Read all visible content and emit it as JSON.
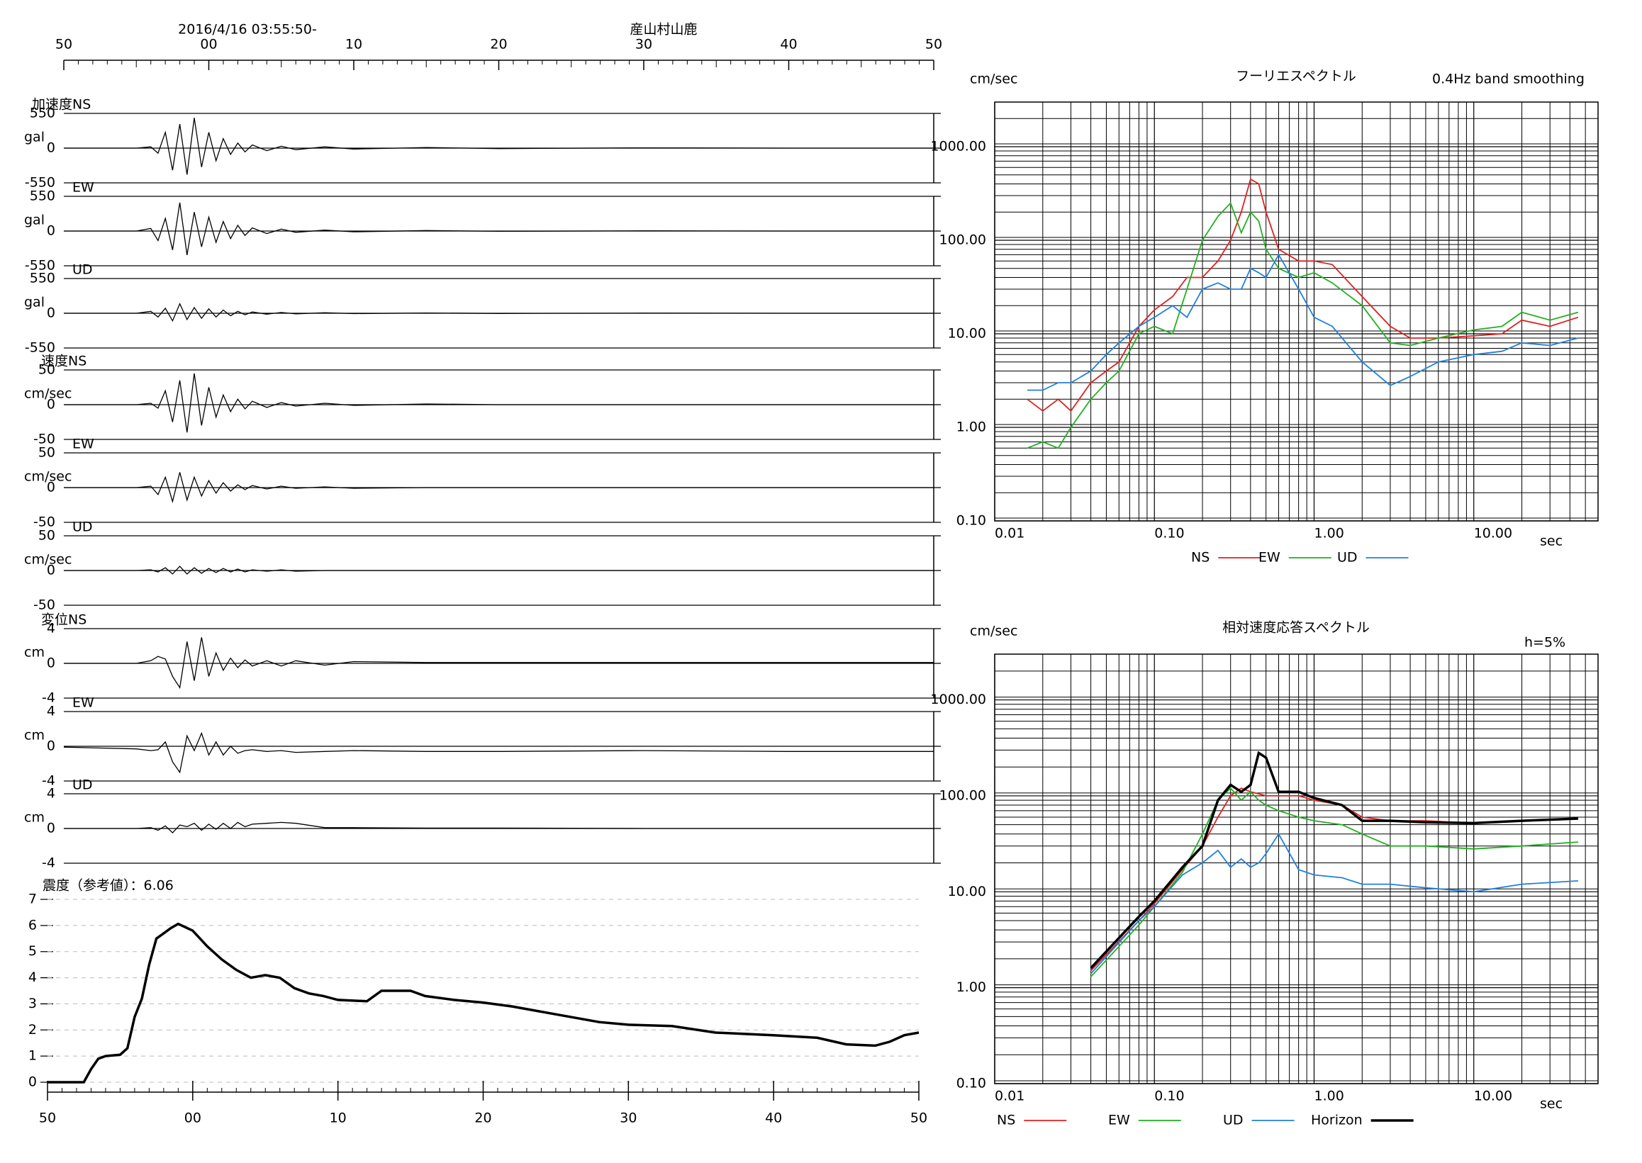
{
  "chart_data": [
    {
      "type": "waveform",
      "title": "産山村山鹿",
      "subtitle": "2016/4/16 03:55:50-",
      "xlim": [
        -10,
        50
      ],
      "xticks": [
        {
          "value": -10,
          "label": "50"
        },
        {
          "value": 0,
          "label": "00"
        },
        10,
        20,
        30,
        40,
        {
          "value": 50,
          "label": "50"
        }
      ],
      "x": [
        -10,
        -5,
        -4,
        -3.5,
        -3,
        -2.5,
        -2,
        -1.5,
        -1,
        -0.5,
        0,
        0.5,
        1,
        1.5,
        2,
        2.5,
        3,
        4,
        5,
        6,
        8,
        10,
        15,
        20,
        30,
        40,
        50
      ],
      "color": "#000000",
      "panels": [
        {
          "name": "加速度NS",
          "unit": "gal",
          "ylim": [
            -550,
            550
          ],
          "yticks": [
            -550,
            0,
            550
          ],
          "values": [
            0,
            0,
            20,
            -80,
            250,
            -350,
            380,
            -420,
            480,
            -300,
            250,
            -200,
            150,
            -100,
            80,
            -60,
            50,
            -40,
            30,
            -25,
            20,
            -15,
            10,
            -8,
            5,
            0,
            0
          ]
        },
        {
          "name": "EW",
          "unit": "gal",
          "ylim": [
            -550,
            550
          ],
          "yticks": [
            -550,
            0,
            550
          ],
          "values": [
            0,
            0,
            40,
            -150,
            200,
            -300,
            450,
            -380,
            300,
            -250,
            220,
            -180,
            150,
            -120,
            90,
            -70,
            50,
            -40,
            30,
            -20,
            15,
            -12,
            8,
            -5,
            3,
            0,
            0
          ]
        },
        {
          "name": "UD",
          "unit": "gal",
          "ylim": [
            -550,
            550
          ],
          "yticks": [
            -550,
            0,
            550
          ],
          "values": [
            0,
            0,
            30,
            -60,
            80,
            -120,
            150,
            -100,
            90,
            -80,
            70,
            -60,
            50,
            -40,
            30,
            -25,
            20,
            -15,
            12,
            -10,
            8,
            -6,
            4,
            -3,
            2,
            0,
            0
          ]
        },
        {
          "name": "速度NS",
          "unit": "cm/sec",
          "ylim": [
            -50,
            50
          ],
          "yticks": [
            -50,
            0,
            50
          ],
          "values": [
            0,
            0,
            2,
            -5,
            20,
            -25,
            35,
            -40,
            45,
            -30,
            25,
            -18,
            14,
            -10,
            8,
            -6,
            5,
            -4,
            3,
            -2,
            2,
            -1,
            1,
            0,
            0,
            0,
            0
          ]
        },
        {
          "name": "EW",
          "unit": "cm/sec",
          "ylim": [
            -50,
            50
          ],
          "yticks": [
            -50,
            0,
            50
          ],
          "values": [
            0,
            0,
            2,
            -10,
            15,
            -20,
            22,
            -18,
            15,
            -12,
            10,
            -8,
            7,
            -5,
            4,
            -3,
            3,
            -2,
            2,
            -1,
            1,
            -1,
            0,
            0,
            0,
            0,
            0
          ]
        },
        {
          "name": "UD",
          "unit": "cm/sec",
          "ylim": [
            -50,
            50
          ],
          "yticks": [
            -50,
            0,
            50
          ],
          "values": [
            0,
            0,
            1,
            -2,
            4,
            -5,
            6,
            -5,
            4,
            -4,
            3,
            -3,
            3,
            -2,
            2,
            -2,
            1,
            -1,
            1,
            -1,
            0,
            0,
            0,
            0,
            0,
            0,
            0
          ]
        },
        {
          "name": "変位NS",
          "unit": "cm",
          "ylim": [
            -4,
            4
          ],
          "yticks": [
            -4,
            0,
            4
          ],
          "values": [
            0,
            0,
            0.3,
            0.8,
            0.5,
            -1.5,
            -2.8,
            2.5,
            -2,
            3,
            -1.5,
            1.2,
            -0.8,
            0.6,
            -0.5,
            0.4,
            -0.3,
            0.3,
            -0.3,
            0.3,
            -0.2,
            0.2,
            0.1,
            0.1,
            0.1,
            0.1,
            0.1
          ]
        },
        {
          "name": "EW",
          "unit": "cm",
          "ylim": [
            -4,
            4
          ],
          "yticks": [
            -4,
            0,
            4
          ],
          "values": [
            -0.1,
            -0.3,
            -0.5,
            -0.4,
            0.5,
            -1.8,
            -3,
            1.2,
            -0.5,
            1.5,
            -1,
            0.5,
            -1,
            0,
            -0.8,
            -0.5,
            -0.4,
            -0.6,
            -0.5,
            -0.7,
            -0.6,
            -0.5,
            -0.6,
            -0.6,
            -0.5,
            -0.6,
            -0.6
          ]
        },
        {
          "name": "UD",
          "unit": "cm",
          "ylim": [
            -4,
            4
          ],
          "yticks": [
            -4,
            0,
            4
          ],
          "values": [
            0,
            0,
            0.1,
            -0.2,
            0.3,
            -0.5,
            0.4,
            0.2,
            0.6,
            -0.2,
            0.5,
            -0.1,
            0.6,
            0,
            0.7,
            0.2,
            0.5,
            0.6,
            0.7,
            0.6,
            0.1,
            0.1,
            0.05,
            0.05,
            0,
            0,
            0
          ]
        }
      ]
    },
    {
      "type": "line",
      "title": "震度（参考値）：6.06",
      "xlim": [
        -10,
        50
      ],
      "xticks": [
        {
          "value": -10,
          "label": "50"
        },
        {
          "value": 0,
          "label": "00"
        },
        10,
        20,
        30,
        40,
        {
          "value": 50,
          "label": "50"
        }
      ],
      "ylim": [
        0,
        7
      ],
      "yticks": [
        0,
        1,
        2,
        3,
        4,
        5,
        6,
        7
      ],
      "grid": true,
      "color": "#000000",
      "x": [
        -10,
        -7.5,
        -7,
        -6.5,
        -6,
        -5,
        -4.5,
        -4,
        -3.5,
        -3,
        -2.5,
        -2,
        -1.5,
        -1,
        0,
        1,
        2,
        3,
        4,
        5,
        6,
        7,
        8,
        9,
        10,
        12,
        13,
        15,
        16,
        18,
        20,
        22,
        25,
        28,
        30,
        33,
        36,
        40,
        43,
        45,
        47,
        48,
        49,
        50
      ],
      "values": [
        0,
        0,
        0.5,
        0.9,
        1.0,
        1.05,
        1.3,
        2.5,
        3.2,
        4.5,
        5.5,
        5.7,
        5.9,
        6.06,
        5.8,
        5.2,
        4.7,
        4.3,
        4.0,
        4.1,
        4.0,
        3.6,
        3.4,
        3.3,
        3.15,
        3.1,
        3.5,
        3.5,
        3.3,
        3.15,
        3.05,
        2.9,
        2.6,
        2.3,
        2.2,
        2.15,
        1.9,
        1.8,
        1.7,
        1.45,
        1.4,
        1.55,
        1.8,
        1.9
      ]
    },
    {
      "type": "logline",
      "title": "フーリエスペクトル",
      "subtitle": "0.4Hz band smoothing",
      "y_label": "cm/sec",
      "x_label": "sec",
      "xscale": "log",
      "yscale": "log",
      "grid": true,
      "minor_grid": true,
      "legend": "bottom",
      "xlim": [
        0.01,
        60
      ],
      "ylim": [
        0.1,
        3000
      ],
      "xticks": [
        {
          "value": 0.01,
          "label": "0.01"
        },
        {
          "value": 0.1,
          "label": "0.10"
        },
        {
          "value": 1,
          "label": "1.00"
        },
        {
          "value": 10,
          "label": "10.00"
        }
      ],
      "yticks": [
        {
          "value": 0.1,
          "label": "0.10"
        },
        {
          "value": 1,
          "label": "1.00"
        },
        {
          "value": 10,
          "label": "10.00"
        },
        {
          "value": 100,
          "label": "100.00"
        },
        {
          "value": 1000,
          "label": "1000.00"
        }
      ],
      "x": [
        0.016,
        0.02,
        0.025,
        0.03,
        0.04,
        0.05,
        0.06,
        0.08,
        0.1,
        0.13,
        0.16,
        0.2,
        0.25,
        0.3,
        0.35,
        0.4,
        0.45,
        0.5,
        0.6,
        0.8,
        1,
        1.3,
        2,
        3,
        4,
        6,
        10,
        15,
        20,
        30,
        45
      ],
      "series": [
        {
          "name": "NS",
          "color": "#e02020",
          "values": [
            2,
            1.5,
            2,
            1.5,
            3,
            4,
            5,
            12,
            18,
            25,
            40,
            40,
            60,
            100,
            200,
            450,
            400,
            200,
            80,
            60,
            60,
            55,
            25,
            12,
            9,
            9,
            9.5,
            10,
            14,
            12,
            15
          ]
        },
        {
          "name": "EW",
          "color": "#20b020",
          "values": [
            0.6,
            0.7,
            0.6,
            1.0,
            2,
            3,
            4,
            10,
            12,
            10,
            30,
            100,
            180,
            250,
            120,
            200,
            160,
            80,
            50,
            40,
            45,
            35,
            20,
            8,
            7.5,
            9,
            11,
            12,
            17,
            14,
            17
          ]
        },
        {
          "name": "UD",
          "color": "#2080e0",
          "values": [
            2.5,
            2.5,
            3,
            3,
            4,
            6,
            8,
            12,
            15,
            20,
            15,
            30,
            35,
            30,
            30,
            50,
            45,
            40,
            70,
            30,
            15,
            12,
            5,
            2.8,
            3.5,
            5,
            6,
            6.5,
            8,
            7.5,
            9
          ]
        }
      ]
    },
    {
      "type": "logline",
      "title": "相対速度応答スペクトル",
      "subtitle": "h=5%",
      "y_label": "cm/sec",
      "x_label": "sec",
      "xscale": "log",
      "yscale": "log",
      "grid": true,
      "minor_grid": true,
      "legend": "bottom",
      "xlim": [
        0.01,
        60
      ],
      "ylim": [
        0.1,
        3000
      ],
      "xticks": [
        {
          "value": 0.01,
          "label": "0.01"
        },
        {
          "value": 0.1,
          "label": "0.10"
        },
        {
          "value": 1,
          "label": "1.00"
        },
        {
          "value": 10,
          "label": "10.00"
        }
      ],
      "yticks": [
        {
          "value": 0.1,
          "label": "0.10"
        },
        {
          "value": 1,
          "label": "1.00"
        },
        {
          "value": 10,
          "label": "10.00"
        },
        {
          "value": 100,
          "label": "100.00"
        },
        {
          "value": 1000,
          "label": "1000.00"
        }
      ],
      "x": [
        0.04,
        0.08,
        0.1,
        0.15,
        0.2,
        0.25,
        0.3,
        0.35,
        0.4,
        0.45,
        0.5,
        0.6,
        0.8,
        1,
        1.5,
        2,
        3,
        5,
        10,
        20,
        45
      ],
      "series": [
        {
          "name": "NS",
          "color": "#e02020",
          "values": [
            1.5,
            5,
            7.5,
            17,
            30,
            60,
            100,
            120,
            110,
            105,
            100,
            100,
            100,
            90,
            80,
            60,
            55,
            55,
            52,
            55,
            58
          ]
        },
        {
          "name": "EW",
          "color": "#20b020",
          "values": [
            1.3,
            4.5,
            7,
            16,
            40,
            90,
            120,
            90,
            110,
            90,
            80,
            70,
            60,
            55,
            50,
            40,
            30,
            30,
            28,
            30,
            33
          ]
        },
        {
          "name": "UD",
          "color": "#2080e0",
          "values": [
            1.4,
            5,
            7,
            15,
            20,
            27,
            18,
            22,
            18,
            20,
            25,
            40,
            17,
            15,
            14,
            12,
            12,
            11,
            10,
            12,
            13
          ]
        },
        {
          "name": "Horizon",
          "color": "#000000",
          "values": [
            1.6,
            5.5,
            8,
            18,
            30,
            90,
            130,
            110,
            130,
            280,
            250,
            110,
            110,
            95,
            80,
            55,
            55,
            53,
            52,
            55,
            58
          ]
        }
      ]
    }
  ]
}
